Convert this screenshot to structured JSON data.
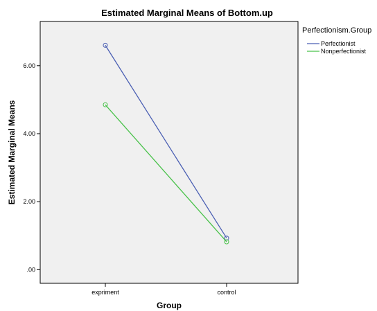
{
  "chart_data": {
    "type": "line",
    "title": "Estimated Marginal Means of Bottom.up",
    "xlabel": "Group",
    "ylabel": "Estimated Marginal Means",
    "categories": [
      "expriment",
      "control"
    ],
    "y_ticks": [
      ".00",
      "2.00",
      "4.00",
      "6.00"
    ],
    "ylim": [
      -0.4,
      7.3
    ],
    "grid": false,
    "legend": {
      "title": "Perfectionism.Group",
      "placement": "right"
    },
    "series": [
      {
        "name": "Perfectionist",
        "values": [
          6.6,
          0.93
        ],
        "color": "#4a5fb3"
      },
      {
        "name": "Nonperfectionist",
        "values": [
          4.85,
          0.82
        ],
        "color": "#49c24a"
      }
    ]
  }
}
